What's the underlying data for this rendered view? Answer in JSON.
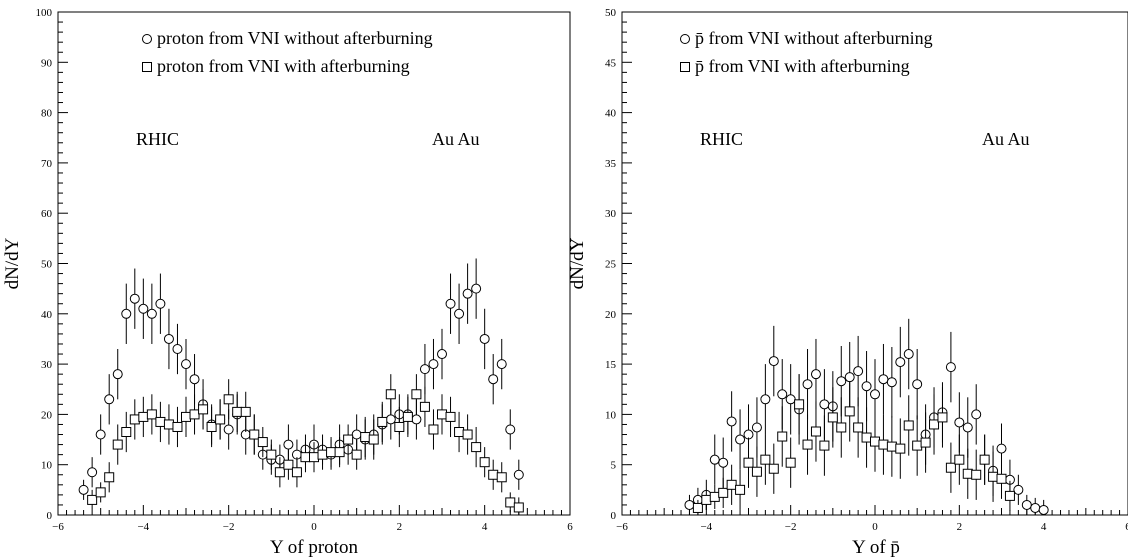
{
  "chart_data": [
    {
      "type": "scatter",
      "xlabel": "Y of proton",
      "ylabel": "dN/dY",
      "xlim": [
        -6,
        6
      ],
      "ylim": [
        0,
        100
      ],
      "xticks": [
        "−6",
        "−4",
        "−2",
        "0",
        "2",
        "4",
        "6"
      ],
      "yticks": [
        "0",
        "10",
        "20",
        "30",
        "40",
        "50",
        "60",
        "70",
        "80",
        "90",
        "100"
      ],
      "legend_position": "top-center",
      "annotations": [
        "RHIC",
        "Au Au"
      ],
      "series": [
        {
          "name": "proton from VNI without afterburning",
          "marker": "circle",
          "x": [
            -5.4,
            -5.2,
            -5.0,
            -4.8,
            -4.6,
            -4.4,
            -4.2,
            -4.0,
            -3.8,
            -3.6,
            -3.4,
            -3.2,
            -3.0,
            -2.8,
            -2.6,
            -2.4,
            -2.2,
            -2.0,
            -1.8,
            -1.6,
            -1.4,
            -1.2,
            -1.0,
            -0.8,
            -0.6,
            -0.4,
            -0.2,
            0.0,
            0.2,
            0.4,
            0.6,
            0.8,
            1.0,
            1.2,
            1.4,
            1.6,
            1.8,
            2.0,
            2.2,
            2.4,
            2.6,
            2.8,
            3.0,
            3.2,
            3.4,
            3.6,
            3.8,
            4.0,
            4.2,
            4.4,
            4.6,
            4.8
          ],
          "y": [
            5,
            8.5,
            16,
            23,
            28,
            40,
            43,
            41,
            40,
            42,
            35,
            33,
            30,
            27,
            22,
            18,
            19,
            17,
            20,
            16,
            16,
            12,
            11,
            11,
            14,
            12,
            13,
            14,
            13,
            12,
            14,
            13,
            16,
            15,
            16,
            18,
            19,
            20,
            20,
            19,
            29,
            30,
            32,
            42,
            40,
            44,
            45,
            35,
            27,
            30,
            17,
            8
          ],
          "yerr": [
            2,
            3,
            4,
            5,
            5,
            6,
            6,
            6,
            6,
            6,
            6,
            5,
            5,
            5,
            5,
            4,
            4,
            4,
            4,
            4,
            4,
            3,
            3,
            3,
            4,
            3,
            3,
            4,
            3,
            3,
            4,
            3,
            4,
            4,
            4,
            4,
            4,
            4,
            4,
            4,
            5,
            5,
            5,
            6,
            6,
            6,
            6,
            6,
            5,
            5,
            4,
            3
          ]
        },
        {
          "name": "proton from VNI with afterburning",
          "marker": "square",
          "x": [
            -5.2,
            -5.0,
            -4.8,
            -4.6,
            -4.4,
            -4.2,
            -4.0,
            -3.8,
            -3.6,
            -3.4,
            -3.2,
            -3.0,
            -2.8,
            -2.6,
            -2.4,
            -2.2,
            -2.0,
            -1.8,
            -1.6,
            -1.4,
            -1.2,
            -1.0,
            -0.8,
            -0.6,
            -0.4,
            -0.2,
            0.0,
            0.2,
            0.4,
            0.6,
            0.8,
            1.0,
            1.2,
            1.4,
            1.6,
            1.8,
            2.0,
            2.2,
            2.4,
            2.6,
            2.8,
            3.0,
            3.2,
            3.4,
            3.6,
            3.8,
            4.0,
            4.2,
            4.4,
            4.6,
            4.8
          ],
          "y": [
            3,
            4.5,
            7.5,
            14,
            16.5,
            19,
            19.5,
            20,
            18.5,
            18,
            17.5,
            19.5,
            20,
            21,
            17.5,
            19,
            23,
            20.5,
            20.5,
            16,
            14.5,
            12,
            8.5,
            10,
            8.5,
            11.5,
            11.5,
            12,
            12.5,
            12.5,
            15,
            12,
            15.5,
            15,
            18.5,
            24,
            17.5,
            19.5,
            24,
            21.5,
            17,
            20,
            19.5,
            16.5,
            16,
            13.5,
            10.5,
            8,
            7.5,
            2.5,
            1.5
          ],
          "yerr": [
            2,
            2,
            3,
            4,
            4,
            4,
            4,
            4,
            4,
            4,
            4,
            4,
            4,
            4,
            4,
            4,
            4,
            4,
            4,
            4,
            3,
            3,
            3,
            3,
            3,
            3,
            3,
            3,
            3,
            3,
            3,
            3,
            4,
            4,
            4,
            4,
            4,
            4,
            4,
            4,
            4,
            4,
            4,
            4,
            4,
            4,
            3,
            3,
            3,
            2,
            2
          ]
        }
      ]
    },
    {
      "type": "scatter",
      "xlabel": "Y of p̄",
      "ylabel": "dN/dY",
      "xlim": [
        -6,
        6
      ],
      "ylim": [
        0,
        50
      ],
      "xticks": [
        "−6",
        "−4",
        "−2",
        "0",
        "2",
        "4",
        "6"
      ],
      "yticks": [
        "0",
        "5",
        "10",
        "15",
        "20",
        "25",
        "30",
        "35",
        "40",
        "45",
        "50"
      ],
      "legend_position": "top-center",
      "annotations": [
        "RHIC",
        "Au Au"
      ],
      "series": [
        {
          "name": "p̄ from VNI without afterburning",
          "marker": "circle",
          "x": [
            -4.4,
            -4.2,
            -4.0,
            -3.8,
            -3.6,
            -3.4,
            -3.2,
            -3.0,
            -2.8,
            -2.6,
            -2.4,
            -2.2,
            -2.0,
            -1.8,
            -1.6,
            -1.4,
            -1.2,
            -1.0,
            -0.8,
            -0.6,
            -0.4,
            -0.2,
            0.0,
            0.2,
            0.4,
            0.6,
            0.8,
            1.0,
            1.2,
            1.4,
            1.6,
            1.8,
            2.0,
            2.2,
            2.4,
            2.6,
            2.8,
            3.0,
            3.2,
            3.4,
            3.6,
            3.8,
            4.0
          ],
          "y": [
            1,
            1.5,
            2,
            5.5,
            5.2,
            9.3,
            7.5,
            8,
            8.7,
            11.5,
            15.3,
            12,
            11.5,
            10.5,
            13,
            14,
            11,
            10.8,
            13.3,
            13.7,
            14.3,
            12.8,
            12,
            13.5,
            13.2,
            15.2,
            16,
            13,
            8,
            9.7,
            10.2,
            14.7,
            9.2,
            8.7,
            10,
            5.5,
            4.4,
            6.6,
            3.5,
            2.5,
            1,
            0.7,
            0.5
          ],
          "yerr": [
            1,
            1.2,
            1.5,
            2.5,
            2.5,
            3,
            3,
            3,
            3,
            3.5,
            3.5,
            3.5,
            3.5,
            3.5,
            3.5,
            3.5,
            3.5,
            3.5,
            3.5,
            3.5,
            3.5,
            3.5,
            3.5,
            3.5,
            3.5,
            3.5,
            3.5,
            3.5,
            3,
            3,
            3,
            3.5,
            3,
            3,
            3,
            2.5,
            2.5,
            2.5,
            2,
            1.5,
            1,
            1,
            1
          ]
        },
        {
          "name": "p̄ from VNI with afterburning",
          "marker": "square",
          "x": [
            -4.2,
            -4.0,
            -3.8,
            -3.6,
            -3.4,
            -3.2,
            -3.0,
            -2.8,
            -2.6,
            -2.4,
            -2.2,
            -2.0,
            -1.8,
            -1.6,
            -1.4,
            -1.2,
            -1.0,
            -0.8,
            -0.6,
            -0.4,
            -0.2,
            0.0,
            0.2,
            0.4,
            0.6,
            0.8,
            1.0,
            1.2,
            1.4,
            1.6,
            1.8,
            2.0,
            2.2,
            2.4,
            2.6,
            2.8,
            3.0,
            3.2
          ],
          "y": [
            0.7,
            1.5,
            1.8,
            2.2,
            3,
            2.5,
            5.2,
            4.3,
            5.5,
            4.6,
            7.8,
            5.2,
            11,
            7,
            8.3,
            6.9,
            9.7,
            8.7,
            10.3,
            8.7,
            7.7,
            7.3,
            7,
            6.8,
            6.6,
            8.9,
            6.9,
            7.2,
            9,
            9.7,
            4.7,
            5.5,
            4.1,
            4,
            5.5,
            3.8,
            3.6,
            1.9
          ],
          "yerr": [
            0.8,
            1,
            1.2,
            1.5,
            2,
            2,
            2.5,
            2.5,
            2.5,
            2.5,
            3,
            2.5,
            3,
            3,
            3,
            3,
            3,
            3,
            3,
            3,
            3,
            3,
            3,
            3,
            3,
            3,
            3,
            3,
            3,
            3,
            2.5,
            2.5,
            2.5,
            2.5,
            2.5,
            2.5,
            2,
            1.5
          ]
        }
      ]
    }
  ]
}
